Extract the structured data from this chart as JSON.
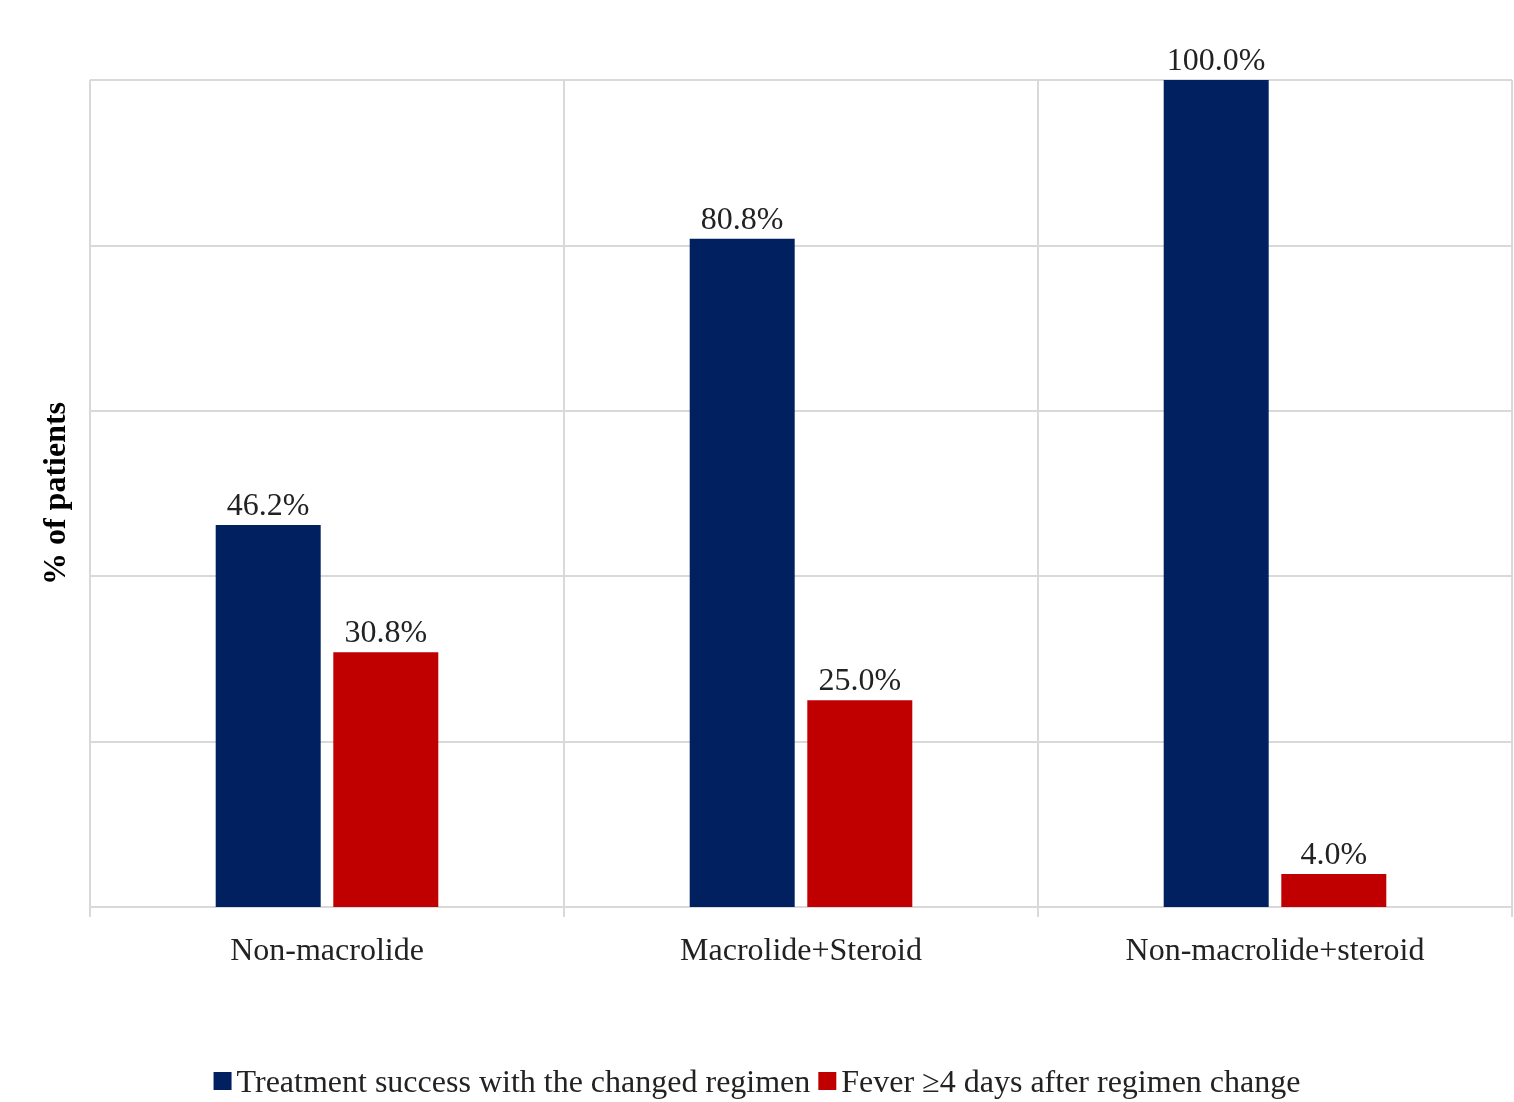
{
  "chart_data": {
    "type": "bar",
    "ylabel": "% of patients",
    "categories": [
      "Non-macrolide",
      "Macrolide+Steroid",
      "Non-macrolide+steroid"
    ],
    "series": [
      {
        "name": "Treatment success with the changed regimen",
        "color": "#002060",
        "values": [
          46.2,
          80.8,
          100.0
        ],
        "value_labels": [
          "46.2%",
          "80.8%",
          "100.0%"
        ]
      },
      {
        "name": "Fever ≥4 days after regimen change",
        "color": "#c00000",
        "values": [
          30.8,
          25.0,
          4.0
        ],
        "value_labels": [
          "30.8%",
          "25.0%",
          "4.0%"
        ]
      }
    ],
    "ylim": [
      0,
      100
    ],
    "yticks": [
      {
        "value": 0,
        "label": null
      },
      {
        "value": 20,
        "label": null
      },
      {
        "value": 40,
        "label": null
      },
      {
        "value": 60,
        "label": null
      },
      {
        "value": 80,
        "label": null
      },
      {
        "value": 100,
        "label": null
      }
    ],
    "tick_labels": "x",
    "grid": true,
    "legend": "bottom"
  }
}
